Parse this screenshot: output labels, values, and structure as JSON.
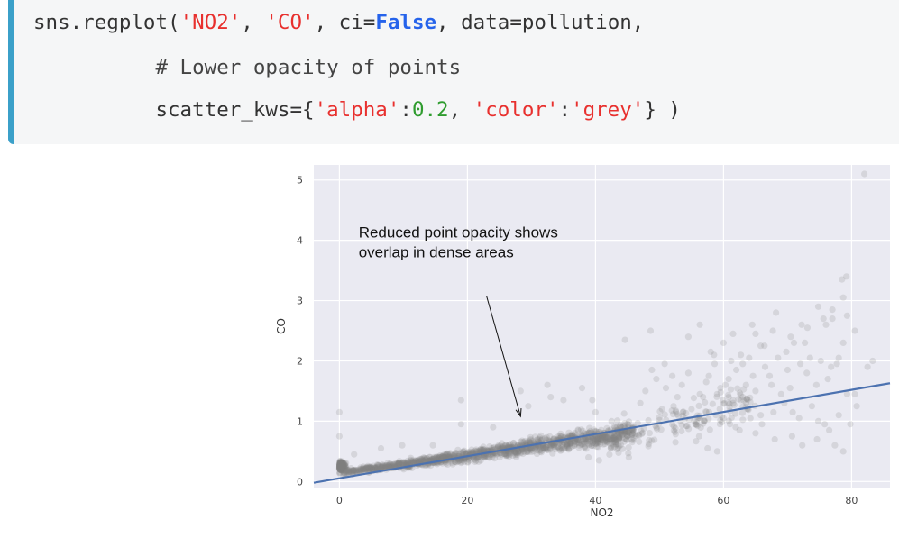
{
  "code": {
    "lines": [
      [
        {
          "t": "sns.regplot(",
          "c": "plain"
        },
        {
          "t": "'NO2'",
          "c": "str"
        },
        {
          "t": ", ",
          "c": "plain"
        },
        {
          "t": "'CO'",
          "c": "str"
        },
        {
          "t": ", ci=",
          "c": "plain"
        },
        {
          "t": "False",
          "c": "kw"
        },
        {
          "t": ", data=pollution,",
          "c": "plain"
        }
      ],
      [
        {
          "t": "          # Lower opacity of points",
          "c": "com"
        }
      ],
      [
        {
          "t": "          scatter_kws={",
          "c": "plain"
        },
        {
          "t": "'alpha'",
          "c": "str"
        },
        {
          "t": ":",
          "c": "plain"
        },
        {
          "t": "0.2",
          "c": "num"
        },
        {
          "t": ", ",
          "c": "plain"
        },
        {
          "t": "'color'",
          "c": "str"
        },
        {
          "t": ":",
          "c": "plain"
        },
        {
          "t": "'grey'",
          "c": "str"
        },
        {
          "t": "} )",
          "c": "plain"
        }
      ]
    ]
  },
  "colors": {
    "plot_background": "#eaeaf2",
    "grid": "#ffffff",
    "points": "#808080",
    "regression_line": "#4c72b0",
    "code_accent": "#3ba0c9"
  },
  "chart_data": {
    "type": "scatter",
    "xlabel": "NO2",
    "ylabel": "CO",
    "xlim": [
      -4,
      86
    ],
    "ylim": [
      -0.1,
      5.25
    ],
    "xticks": [
      0,
      20,
      40,
      60,
      80
    ],
    "yticks": [
      0,
      1,
      2,
      3,
      4,
      5
    ],
    "grid": true,
    "point_alpha": 0.2,
    "regression_line": {
      "x": [
        -4,
        86
      ],
      "y": [
        -0.02,
        1.63
      ]
    },
    "annotation": {
      "lines": [
        "Reduced point opacity shows",
        "overlap in dense areas"
      ],
      "text_anchor": [
        3,
        4.05
      ],
      "arrow_from": [
        23,
        3.07
      ],
      "arrow_to": [
        28.3,
        1.08
      ]
    },
    "outliers": [
      [
        0,
        1.15
      ],
      [
        0,
        0.75
      ],
      [
        2.3,
        0.45
      ],
      [
        6.5,
        0.55
      ],
      [
        9.8,
        0.6
      ],
      [
        11.5,
        0.35
      ],
      [
        14.6,
        0.6
      ],
      [
        19,
        1.35
      ],
      [
        19,
        0.95
      ],
      [
        24,
        0.9
      ],
      [
        28.3,
        1.5
      ],
      [
        29.5,
        1.25
      ],
      [
        31,
        0.6
      ],
      [
        32.5,
        1.6
      ],
      [
        33,
        1.4
      ],
      [
        35,
        1.35
      ],
      [
        37.9,
        1.55
      ],
      [
        38.9,
        0.4
      ],
      [
        39.5,
        1.35
      ],
      [
        40,
        1.15
      ],
      [
        42.5,
        1.0
      ],
      [
        44.6,
        2.35
      ],
      [
        47,
        1.3
      ],
      [
        47.8,
        1.5
      ],
      [
        48.8,
        1.85
      ],
      [
        49.5,
        1.7
      ],
      [
        50.4,
        1.2
      ],
      [
        51,
        1.55
      ],
      [
        52.2,
        1.25
      ],
      [
        52.8,
        1.4
      ],
      [
        53.5,
        1.6
      ],
      [
        54.5,
        1.8
      ],
      [
        55,
        1.2
      ],
      [
        56.3,
        1.45
      ],
      [
        56.8,
        1.4
      ],
      [
        57.3,
        1.65
      ],
      [
        57.7,
        1.75
      ],
      [
        58,
        2.15
      ],
      [
        58.6,
        1.95
      ],
      [
        59,
        1.45
      ],
      [
        59.5,
        1.55
      ],
      [
        60.3,
        1.6
      ],
      [
        60.8,
        1.7
      ],
      [
        61.5,
        1.35
      ],
      [
        62,
        1.85
      ],
      [
        62.7,
        2.1
      ],
      [
        63,
        1.4
      ],
      [
        63.5,
        1.6
      ],
      [
        64,
        2.05
      ],
      [
        64.6,
        1.75
      ],
      [
        65,
        1.5
      ],
      [
        65.8,
        2.25
      ],
      [
        66.5,
        1.9
      ],
      [
        67.2,
        1.75
      ],
      [
        67.8,
        1.15
      ],
      [
        68.5,
        2.05
      ],
      [
        69,
        1.45
      ],
      [
        69.8,
        2.15
      ],
      [
        70.4,
        1.55
      ],
      [
        71,
        2.3
      ],
      [
        72,
        1.95
      ],
      [
        73,
        1.8
      ],
      [
        73.8,
        1.25
      ],
      [
        74.5,
        1.6
      ],
      [
        75.2,
        2.0
      ],
      [
        76.3,
        1.7
      ],
      [
        76.8,
        1.9
      ],
      [
        78,
        2.05
      ],
      [
        78.7,
        2.3
      ],
      [
        62.5,
        0.85
      ],
      [
        61.9,
        0.9
      ],
      [
        59,
        0.5
      ],
      [
        56.2,
        0.75
      ],
      [
        52.5,
        0.65
      ],
      [
        54.5,
        2.4
      ],
      [
        56.3,
        2.6
      ],
      [
        58.5,
        2.1
      ],
      [
        60,
        2.3
      ],
      [
        61.5,
        2.45
      ],
      [
        63,
        1.95
      ],
      [
        64.5,
        2.6
      ],
      [
        66.4,
        2.25
      ],
      [
        67.7,
        2.5
      ],
      [
        68.2,
        2.8
      ],
      [
        70.5,
        2.4
      ],
      [
        72.2,
        2.6
      ],
      [
        73.1,
        2.55
      ],
      [
        74.8,
        2.9
      ],
      [
        75.6,
        2.7
      ],
      [
        77,
        2.85
      ],
      [
        79.3,
        2.75
      ],
      [
        80.5,
        2.5
      ],
      [
        48.6,
        2.5
      ],
      [
        50.8,
        1.95
      ],
      [
        52,
        1.75
      ],
      [
        53.3,
        1.0
      ],
      [
        55.6,
        0.95
      ],
      [
        57.5,
        0.55
      ],
      [
        65,
        0.8
      ],
      [
        66,
        0.95
      ],
      [
        70.7,
        0.75
      ],
      [
        72.3,
        0.6
      ],
      [
        74.8,
        1.0
      ],
      [
        76.5,
        0.85
      ],
      [
        78,
        1.1
      ],
      [
        70.8,
        1.15
      ],
      [
        68,
        0.7
      ],
      [
        60,
        1.05
      ],
      [
        61,
        0.95
      ],
      [
        63.8,
        1.2
      ],
      [
        65.8,
        1.1
      ],
      [
        69.5,
        1.3
      ],
      [
        71.8,
        1.05
      ],
      [
        78.5,
        3.35
      ],
      [
        79.2,
        3.4
      ],
      [
        78.7,
        3.05
      ],
      [
        77,
        2.7
      ],
      [
        76,
        2.6
      ],
      [
        72.7,
        2.3
      ],
      [
        65,
        2.45
      ],
      [
        61.2,
        2.0
      ],
      [
        62.7,
        1.35
      ],
      [
        67.5,
        1.6
      ],
      [
        70,
        1.85
      ],
      [
        73.5,
        2.05
      ],
      [
        77.7,
        1.95
      ],
      [
        79.3,
        1.45
      ],
      [
        80.5,
        1.45
      ],
      [
        82.5,
        1.9
      ],
      [
        83.3,
        2.0
      ],
      [
        82,
        5.1
      ],
      [
        80.8,
        1.25
      ],
      [
        79.8,
        0.95
      ],
      [
        77.4,
        0.6
      ],
      [
        78.7,
        0.5
      ],
      [
        74.6,
        0.7
      ],
      [
        75.8,
        0.95
      ]
    ]
  }
}
